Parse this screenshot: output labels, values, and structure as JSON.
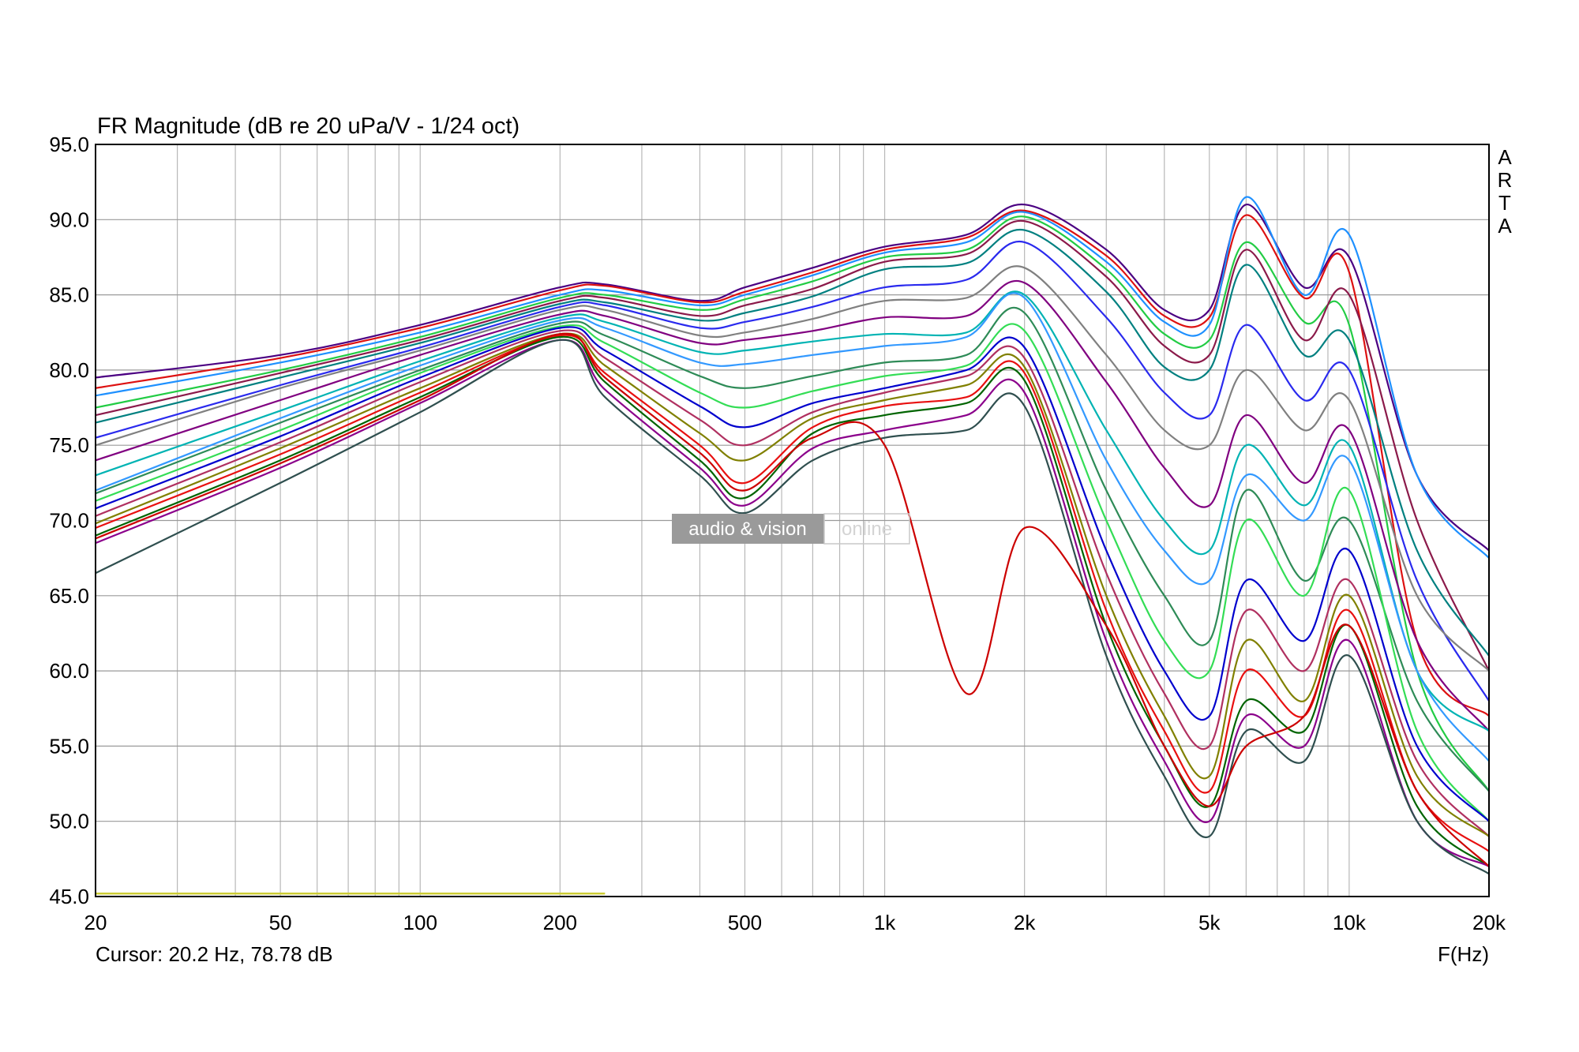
{
  "chart_data": {
    "type": "line",
    "title": "FR Magnitude (dB re 20 uPa/V - 1/24 oct)",
    "xlabel": "F(Hz)",
    "x_scale": "log",
    "xlim": [
      20,
      20000
    ],
    "ylim": [
      45,
      95
    ],
    "grid": true,
    "y_ticks": [
      "95.0",
      "90.0",
      "85.0",
      "80.0",
      "75.0",
      "70.0",
      "65.0",
      "60.0",
      "55.0",
      "50.0",
      "45.0"
    ],
    "x_ticks": [
      {
        "value": 20,
        "label": "20"
      },
      {
        "value": 50,
        "label": "50"
      },
      {
        "value": 100,
        "label": "100"
      },
      {
        "value": 200,
        "label": "200"
      },
      {
        "value": 500,
        "label": "500"
      },
      {
        "value": 1000,
        "label": "1k"
      },
      {
        "value": 2000,
        "label": "2k"
      },
      {
        "value": 5000,
        "label": "5k"
      },
      {
        "value": 10000,
        "label": "10k"
      },
      {
        "value": 20000,
        "label": "20k"
      }
    ],
    "cursor_text": "Cursor: 20.2 Hz, 78.78 dB",
    "brand": "ARTA",
    "watermark": {
      "left": "audio & vision",
      "right": "online"
    },
    "x": [
      20,
      50,
      100,
      200,
      250,
      400,
      500,
      700,
      1000,
      1500,
      2000,
      3000,
      4000,
      5000,
      6000,
      8000,
      10000,
      14000,
      20000
    ],
    "series": [
      {
        "color": "#4b0082",
        "values": [
          79.5,
          81.0,
          83.0,
          85.5,
          85.7,
          84.6,
          85.5,
          86.8,
          88.2,
          89.0,
          91.0,
          88.0,
          84.0,
          84.0,
          91.0,
          85.5,
          87.5,
          73.0,
          68.0
        ]
      },
      {
        "color": "#dd1111",
        "values": [
          78.8,
          80.8,
          82.8,
          85.3,
          85.6,
          84.5,
          85.2,
          86.5,
          88.0,
          88.8,
          90.6,
          87.6,
          83.6,
          83.5,
          90.3,
          84.8,
          86.5,
          62.0,
          57.0
        ]
      },
      {
        "color": "#1e90ff",
        "values": [
          78.3,
          80.5,
          82.5,
          85.0,
          85.3,
          84.3,
          85.0,
          86.3,
          87.8,
          88.5,
          90.5,
          87.2,
          83.2,
          83.0,
          91.5,
          85.0,
          89.0,
          73.0,
          67.5
        ]
      },
      {
        "color": "#22cc44",
        "values": [
          77.5,
          80.0,
          82.2,
          84.8,
          85.0,
          84.0,
          84.7,
          85.9,
          87.5,
          88.0,
          90.2,
          86.7,
          82.4,
          82.0,
          88.5,
          83.2,
          83.0,
          60.0,
          52.0
        ]
      },
      {
        "color": "#8b1a4a",
        "values": [
          77.0,
          79.8,
          82.0,
          84.6,
          84.8,
          83.6,
          84.3,
          85.4,
          87.2,
          87.7,
          89.9,
          86.2,
          81.6,
          81.0,
          88.0,
          82.0,
          85.0,
          70.0,
          60.0
        ]
      },
      {
        "color": "#008080",
        "values": [
          76.5,
          79.5,
          81.8,
          84.4,
          84.5,
          83.3,
          83.8,
          84.9,
          86.7,
          87.1,
          89.3,
          85.2,
          80.2,
          80.0,
          87.0,
          81.0,
          82.0,
          68.0,
          61.0
        ]
      },
      {
        "color": "#2a2aee",
        "values": [
          75.5,
          79.0,
          81.5,
          84.2,
          84.3,
          82.8,
          83.2,
          84.2,
          85.5,
          86.0,
          88.5,
          83.5,
          78.5,
          77.0,
          83.0,
          78.0,
          80.0,
          66.0,
          58.0
        ]
      },
      {
        "color": "#808080",
        "values": [
          75.0,
          78.8,
          81.3,
          84.0,
          84.0,
          82.3,
          82.5,
          83.4,
          84.6,
          84.8,
          86.8,
          81.0,
          76.0,
          75.0,
          80.0,
          76.0,
          78.0,
          65.0,
          60.0
        ]
      },
      {
        "color": "#800080",
        "values": [
          74.0,
          78.0,
          81.0,
          83.7,
          83.6,
          81.8,
          82.0,
          82.6,
          83.5,
          83.6,
          85.8,
          79.2,
          73.5,
          71.0,
          77.0,
          72.5,
          76.0,
          62.0,
          56.0
        ]
      },
      {
        "color": "#00b3b3",
        "values": [
          73.0,
          77.3,
          80.6,
          83.5,
          83.2,
          81.2,
          81.3,
          81.9,
          82.4,
          82.5,
          85.0,
          76.0,
          70.0,
          68.0,
          75.0,
          71.0,
          75.0,
          60.0,
          56.0
        ]
      },
      {
        "color": "#3399ff",
        "values": [
          72.0,
          76.8,
          80.3,
          83.3,
          82.8,
          80.5,
          80.4,
          81.0,
          81.6,
          82.2,
          84.8,
          74.0,
          68.0,
          66.0,
          73.0,
          70.0,
          74.0,
          60.0,
          54.0
        ]
      },
      {
        "color": "#2e8b57",
        "values": [
          71.8,
          76.5,
          80.0,
          83.1,
          82.3,
          79.6,
          78.8,
          79.6,
          80.5,
          81.0,
          83.8,
          72.0,
          65.0,
          62.0,
          72.0,
          66.0,
          70.0,
          58.0,
          52.0
        ]
      },
      {
        "color": "#33dd55",
        "values": [
          71.3,
          76.0,
          79.8,
          82.9,
          81.8,
          78.5,
          77.5,
          78.6,
          79.6,
          80.3,
          82.6,
          70.0,
          62.0,
          60.0,
          70.0,
          65.0,
          72.0,
          56.0,
          50.0
        ]
      },
      {
        "color": "#0000cd",
        "values": [
          70.8,
          75.6,
          79.5,
          82.8,
          81.3,
          77.6,
          76.2,
          77.8,
          78.8,
          80.0,
          81.5,
          68.0,
          60.0,
          57.0,
          66.0,
          62.0,
          68.0,
          55.0,
          50.0
        ]
      },
      {
        "color": "#b03060",
        "values": [
          70.3,
          75.2,
          79.2,
          82.6,
          80.8,
          76.7,
          75.0,
          77.2,
          78.5,
          79.6,
          80.8,
          66.5,
          58.5,
          55.0,
          64.0,
          60.0,
          66.0,
          54.0,
          49.0
        ]
      },
      {
        "color": "#808000",
        "values": [
          69.8,
          74.8,
          78.8,
          82.4,
          80.3,
          75.8,
          74.0,
          76.8,
          78.0,
          79.0,
          80.2,
          65.0,
          57.0,
          53.0,
          62.0,
          58.0,
          65.0,
          53.0,
          49.0
        ]
      },
      {
        "color": "#e81010",
        "values": [
          69.5,
          74.4,
          78.5,
          82.3,
          79.8,
          75.0,
          72.5,
          76.2,
          77.6,
          78.2,
          79.8,
          64.0,
          56.0,
          52.0,
          60.0,
          57.0,
          64.0,
          52.0,
          48.0
        ]
      },
      {
        "color": "#006400",
        "values": [
          69.0,
          74.0,
          78.2,
          82.2,
          79.2,
          74.0,
          71.5,
          75.8,
          77.0,
          77.8,
          79.3,
          63.0,
          55.0,
          51.0,
          58.0,
          56.0,
          63.0,
          51.0,
          47.0
        ]
      },
      {
        "color": "#8b008b",
        "values": [
          68.5,
          73.5,
          77.8,
          82.0,
          78.7,
          73.5,
          71.0,
          74.8,
          76.0,
          77.0,
          78.5,
          62.0,
          54.0,
          50.0,
          57.0,
          55.0,
          62.0,
          50.0,
          47.0
        ]
      },
      {
        "color": "#2f4f4f",
        "values": [
          66.5,
          72.5,
          77.2,
          82.0,
          78.2,
          73.0,
          70.5,
          74.0,
          75.5,
          76.0,
          77.6,
          61.0,
          53.0,
          49.0,
          56.0,
          54.0,
          61.0,
          50.0,
          46.5
        ]
      },
      {
        "color": "#cc0000",
        "values": [
          68.8,
          73.8,
          78.0,
          82.4,
          79.5,
          74.5,
          72.0,
          75.5,
          75.0,
          58.5,
          69.5,
          63.0,
          55.0,
          51.0,
          55.0,
          57.0,
          63.0,
          52.0,
          47.0
        ]
      }
    ],
    "reference_line": {
      "color": "#cccc33",
      "x": [
        20,
        250
      ],
      "y": [
        45.2,
        45.2
      ]
    }
  }
}
